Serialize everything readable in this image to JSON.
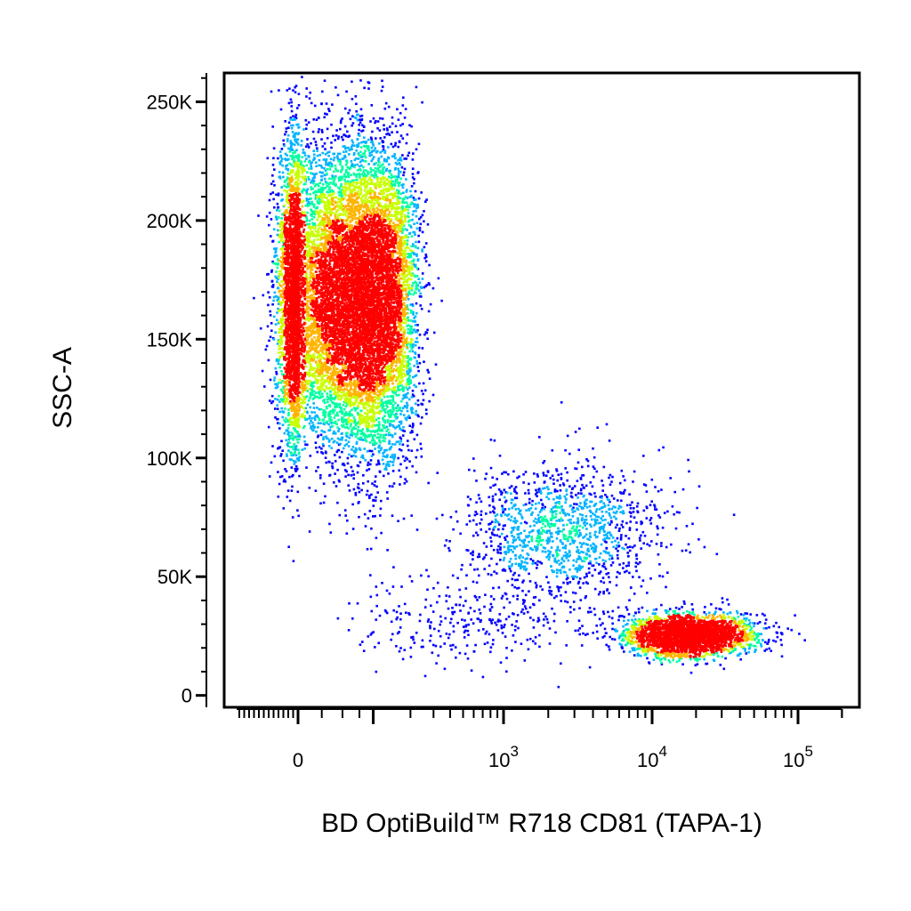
{
  "chart_data": {
    "type": "scatter",
    "subtype": "flow-cytometry-pseudocolor-dot-plot",
    "xlabel": "BD OptiBuild™ R718 CD81 (TAPA-1)",
    "ylabel": "SSC-A",
    "x_scale": "biexponential",
    "y_scale": "linear",
    "xlim": [
      -300,
      200000
    ],
    "ylim": [
      -5000,
      262144
    ],
    "x_ticks": [
      {
        "value": 0,
        "base": "0",
        "exp": ""
      },
      {
        "value": 1000,
        "base": "10",
        "exp": "3"
      },
      {
        "value": 10000,
        "base": "10",
        "exp": "4"
      },
      {
        "value": 100000,
        "base": "10",
        "exp": "5"
      }
    ],
    "y_ticks": [
      {
        "value": 0,
        "label": "0"
      },
      {
        "value": 50000,
        "label": "50K"
      },
      {
        "value": 100000,
        "label": "100K"
      },
      {
        "value": 150000,
        "label": "150K"
      },
      {
        "value": 200000,
        "label": "200K"
      },
      {
        "value": 250000,
        "label": "250K"
      }
    ],
    "grid": false,
    "legend": "none",
    "density_colormap": [
      "#0000ff",
      "#00b4ff",
      "#00ffa0",
      "#c8ff00",
      "#ffb400",
      "#ff0000"
    ],
    "populations": [
      {
        "x_center": 55,
        "y_center": 168000,
        "x_spread": 70,
        "y_spread": 32000,
        "count": 13000
      },
      {
        "x_center": 2500,
        "y_center": 70000,
        "x_spread_log": 0.35,
        "y_spread": 14000,
        "count": 1300
      },
      {
        "x_center": 18000,
        "y_center": 26000,
        "x_spread_log": 0.22,
        "y_spread": 4500,
        "count": 2800
      },
      {
        "x_center": 600,
        "y_center": 32000,
        "x_spread_log": 0.5,
        "y_spread": 9000,
        "count": 300
      }
    ]
  }
}
